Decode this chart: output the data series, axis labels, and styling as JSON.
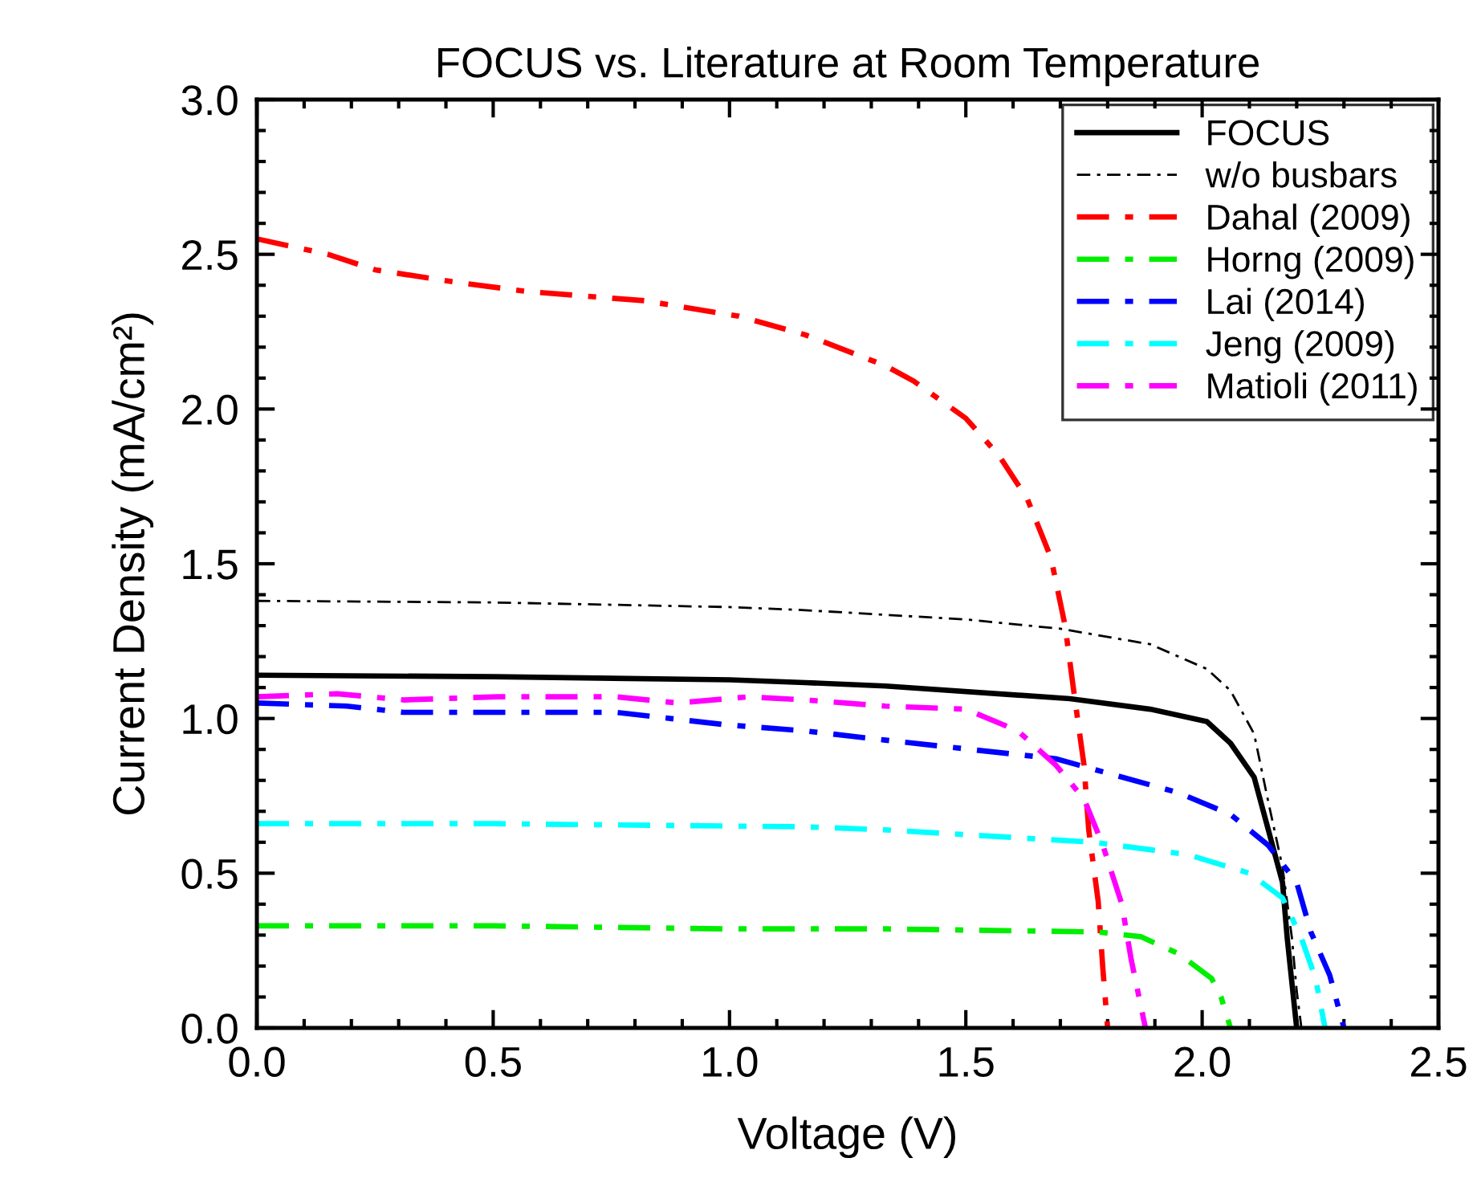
{
  "chart_data": {
    "type": "line",
    "title": "FOCUS vs. Literature at Room Temperature",
    "xlabel": "Voltage (V)",
    "ylabel": "Current Density (mA/cm²)",
    "xlim": [
      0,
      2.5
    ],
    "xticks": [
      {
        "value": 0,
        "label": "0.0"
      },
      0.5,
      {
        "value": 1,
        "label": "1.0"
      },
      1.5,
      {
        "value": 2,
        "label": "2.0"
      },
      2.5
    ],
    "ylim": [
      0,
      3
    ],
    "yticks": [
      {
        "value": 0,
        "label": "0.0"
      },
      0.5,
      {
        "value": 1,
        "label": "1.0"
      },
      1.5,
      {
        "value": 2,
        "label": "2.0"
      },
      2.5,
      {
        "value": 3,
        "label": "3.0"
      }
    ],
    "grid": false,
    "legend": "top right",
    "marker": "none",
    "series": [
      {
        "name": "FOCUS",
        "color": "#000000",
        "line_style": "solid",
        "x": [
          0,
          0.5,
          1.0,
          1.16,
          1.33,
          1.72,
          1.89,
          2.01,
          2.06,
          2.11,
          2.14,
          2.17,
          2.18,
          2.2
        ],
        "values": [
          1.14,
          1.135,
          1.125,
          1.116,
          1.105,
          1.064,
          1.03,
          0.99,
          0.92,
          0.81,
          0.64,
          0.47,
          0.29,
          0
        ]
      },
      {
        "name": "w/o busbars",
        "color": "#000000",
        "line_style": "dashdot",
        "x": [
          0,
          0.5,
          1.0,
          1.16,
          1.5,
          1.7,
          1.89,
          2.01,
          2.06,
          2.11,
          2.14,
          2.17,
          2.19,
          2.2,
          2.21
        ],
        "values": [
          1.38,
          1.375,
          1.36,
          1.35,
          1.32,
          1.29,
          1.24,
          1.16,
          1.09,
          0.95,
          0.73,
          0.52,
          0.29,
          0.12,
          0
        ]
      },
      {
        "name": "Dahal (2009)",
        "color": "#ff0000",
        "line_style": "dashdot",
        "x": [
          0,
          0.15,
          0.25,
          0.42,
          0.57,
          0.82,
          1.02,
          1.16,
          1.33,
          1.39,
          1.5,
          1.57,
          1.63,
          1.68,
          1.71,
          1.73,
          1.75,
          1.76,
          1.78,
          1.79,
          1.8
        ],
        "values": [
          2.55,
          2.5,
          2.45,
          2.41,
          2.38,
          2.35,
          2.3,
          2.24,
          2.14,
          2.09,
          1.97,
          1.85,
          1.71,
          1.52,
          1.3,
          1.07,
          0.85,
          0.64,
          0.41,
          0.19,
          0
        ]
      },
      {
        "name": "Horng (2009)",
        "color": "#00ee00",
        "line_style": "dashdot",
        "x": [
          0,
          0.5,
          1.0,
          1.33,
          1.78,
          1.87,
          1.95,
          2.02,
          2.04,
          2.06
        ],
        "values": [
          0.33,
          0.33,
          0.32,
          0.32,
          0.31,
          0.295,
          0.24,
          0.16,
          0.1,
          0
        ]
      },
      {
        "name": "Lai (2014)",
        "color": "#0000ff",
        "line_style": "dashdot",
        "x": [
          0,
          0.19,
          0.31,
          0.76,
          0.99,
          1.16,
          1.33,
          1.69,
          1.95,
          2.06,
          2.14,
          2.2,
          2.23,
          2.27,
          2.3
        ],
        "values": [
          1.05,
          1.04,
          1.02,
          1.02,
          0.98,
          0.96,
          0.93,
          0.87,
          0.76,
          0.69,
          0.59,
          0.47,
          0.31,
          0.17,
          0
        ]
      },
      {
        "name": "Jeng (2009)",
        "color": "#00ffff",
        "line_style": "dashdot",
        "x": [
          0,
          0.5,
          1.16,
          1.33,
          1.77,
          1.97,
          2.1,
          2.17,
          2.21,
          2.24,
          2.26
        ],
        "values": [
          0.66,
          0.66,
          0.65,
          0.64,
          0.6,
          0.56,
          0.5,
          0.42,
          0.29,
          0.16,
          0
        ]
      },
      {
        "name": "Matioli (2011)",
        "color": "#ff00ff",
        "line_style": "dashdot",
        "x": [
          0,
          0.17,
          0.31,
          0.51,
          0.76,
          0.89,
          1.04,
          1.16,
          1.33,
          1.5,
          1.61,
          1.69,
          1.75,
          1.79,
          1.83,
          1.85,
          1.88
        ],
        "values": [
          1.07,
          1.08,
          1.06,
          1.07,
          1.07,
          1.05,
          1.07,
          1.06,
          1.04,
          1.03,
          0.96,
          0.85,
          0.74,
          0.59,
          0.4,
          0.22,
          0
        ]
      }
    ]
  }
}
